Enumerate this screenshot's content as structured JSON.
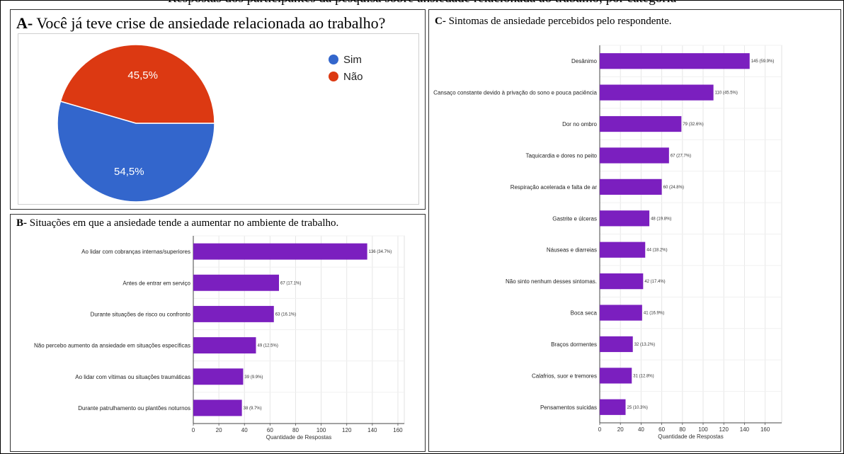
{
  "caption_fragment": "Respostas dos participantes da pesquisa sobre ansiedade relacionada ao trabalho, por categoria",
  "panel_a": {
    "prefix": "A-",
    "title": "Você já teve crise de ansiedade relacionada ao trabalho?"
  },
  "panel_b": {
    "prefix": "B-",
    "title": "Situações em que a ansiedade tende a aumentar no ambiente de trabalho."
  },
  "panel_c": {
    "prefix": "C-",
    "title": "Sintomas de ansiedade percebidos pelo respondente."
  },
  "colors": {
    "sim": "#3366cc",
    "nao": "#dc3912",
    "bar": "#7b1fbf",
    "grid": "#e6e6e6"
  },
  "chart_data": [
    {
      "type": "pie",
      "categories": [
        "Sim",
        "Não"
      ],
      "values": [
        54.5,
        45.5
      ],
      "labels": [
        "54,5%",
        "45,5%"
      ],
      "legend_position": "top-right"
    },
    {
      "type": "bar",
      "orientation": "horizontal",
      "categories": [
        "Ao lidar com cobranças internas/superiores",
        "Antes de entrar em serviço",
        "Durante situações de risco ou confronto",
        "Não percebo aumento da ansiedade em situações específicas",
        "Ao lidar com vítimas ou situações traumáticas",
        "Durante patrulhamento ou plantões noturnos"
      ],
      "values": [
        136,
        67,
        63,
        49,
        39,
        38
      ],
      "data_labels": [
        "136 (34.7%)",
        "67 (17.1%)",
        "63 (16.1%)",
        "49 (12.5%)",
        "39 (9.9%)",
        "38 (9.7%)"
      ],
      "xlabel": "Quantidade de Respostas",
      "xlim": [
        0,
        165
      ],
      "xticks": [
        0,
        20,
        40,
        60,
        80,
        100,
        120,
        140,
        160
      ],
      "grid": true
    },
    {
      "type": "bar",
      "orientation": "horizontal",
      "categories": [
        "Desânimo",
        "Cansaço constante devido à privação do sono e pouca paciência",
        "Dor no ombro",
        "Taquicardia e dores no peito",
        "Respiração acelerada e falta de ar",
        "Gastrite e úlceras",
        "Náuseas e diarreias",
        "Não sinto nenhum desses sintomas.",
        "Boca seca",
        "Braços dormentes",
        "Calafrios, suor e tremores",
        "Pensamentos suicidas"
      ],
      "values": [
        145,
        110,
        79,
        67,
        60,
        48,
        44,
        42,
        41,
        32,
        31,
        25
      ],
      "data_labels": [
        "145 (59.9%)",
        "110 (45.5%)",
        "79 (32.6%)",
        "67 (27.7%)",
        "60 (24.8%)",
        "48 (19.8%)",
        "44 (18.2%)",
        "42 (17.4%)",
        "41 (16.9%)",
        "32 (13.2%)",
        "31 (12.8%)",
        "25 (10.3%)"
      ],
      "xlabel": "Quantidade de Respostas",
      "xlim": [
        0,
        176
      ],
      "xticks": [
        0,
        20,
        40,
        60,
        80,
        100,
        120,
        140,
        160
      ],
      "grid": true
    }
  ]
}
